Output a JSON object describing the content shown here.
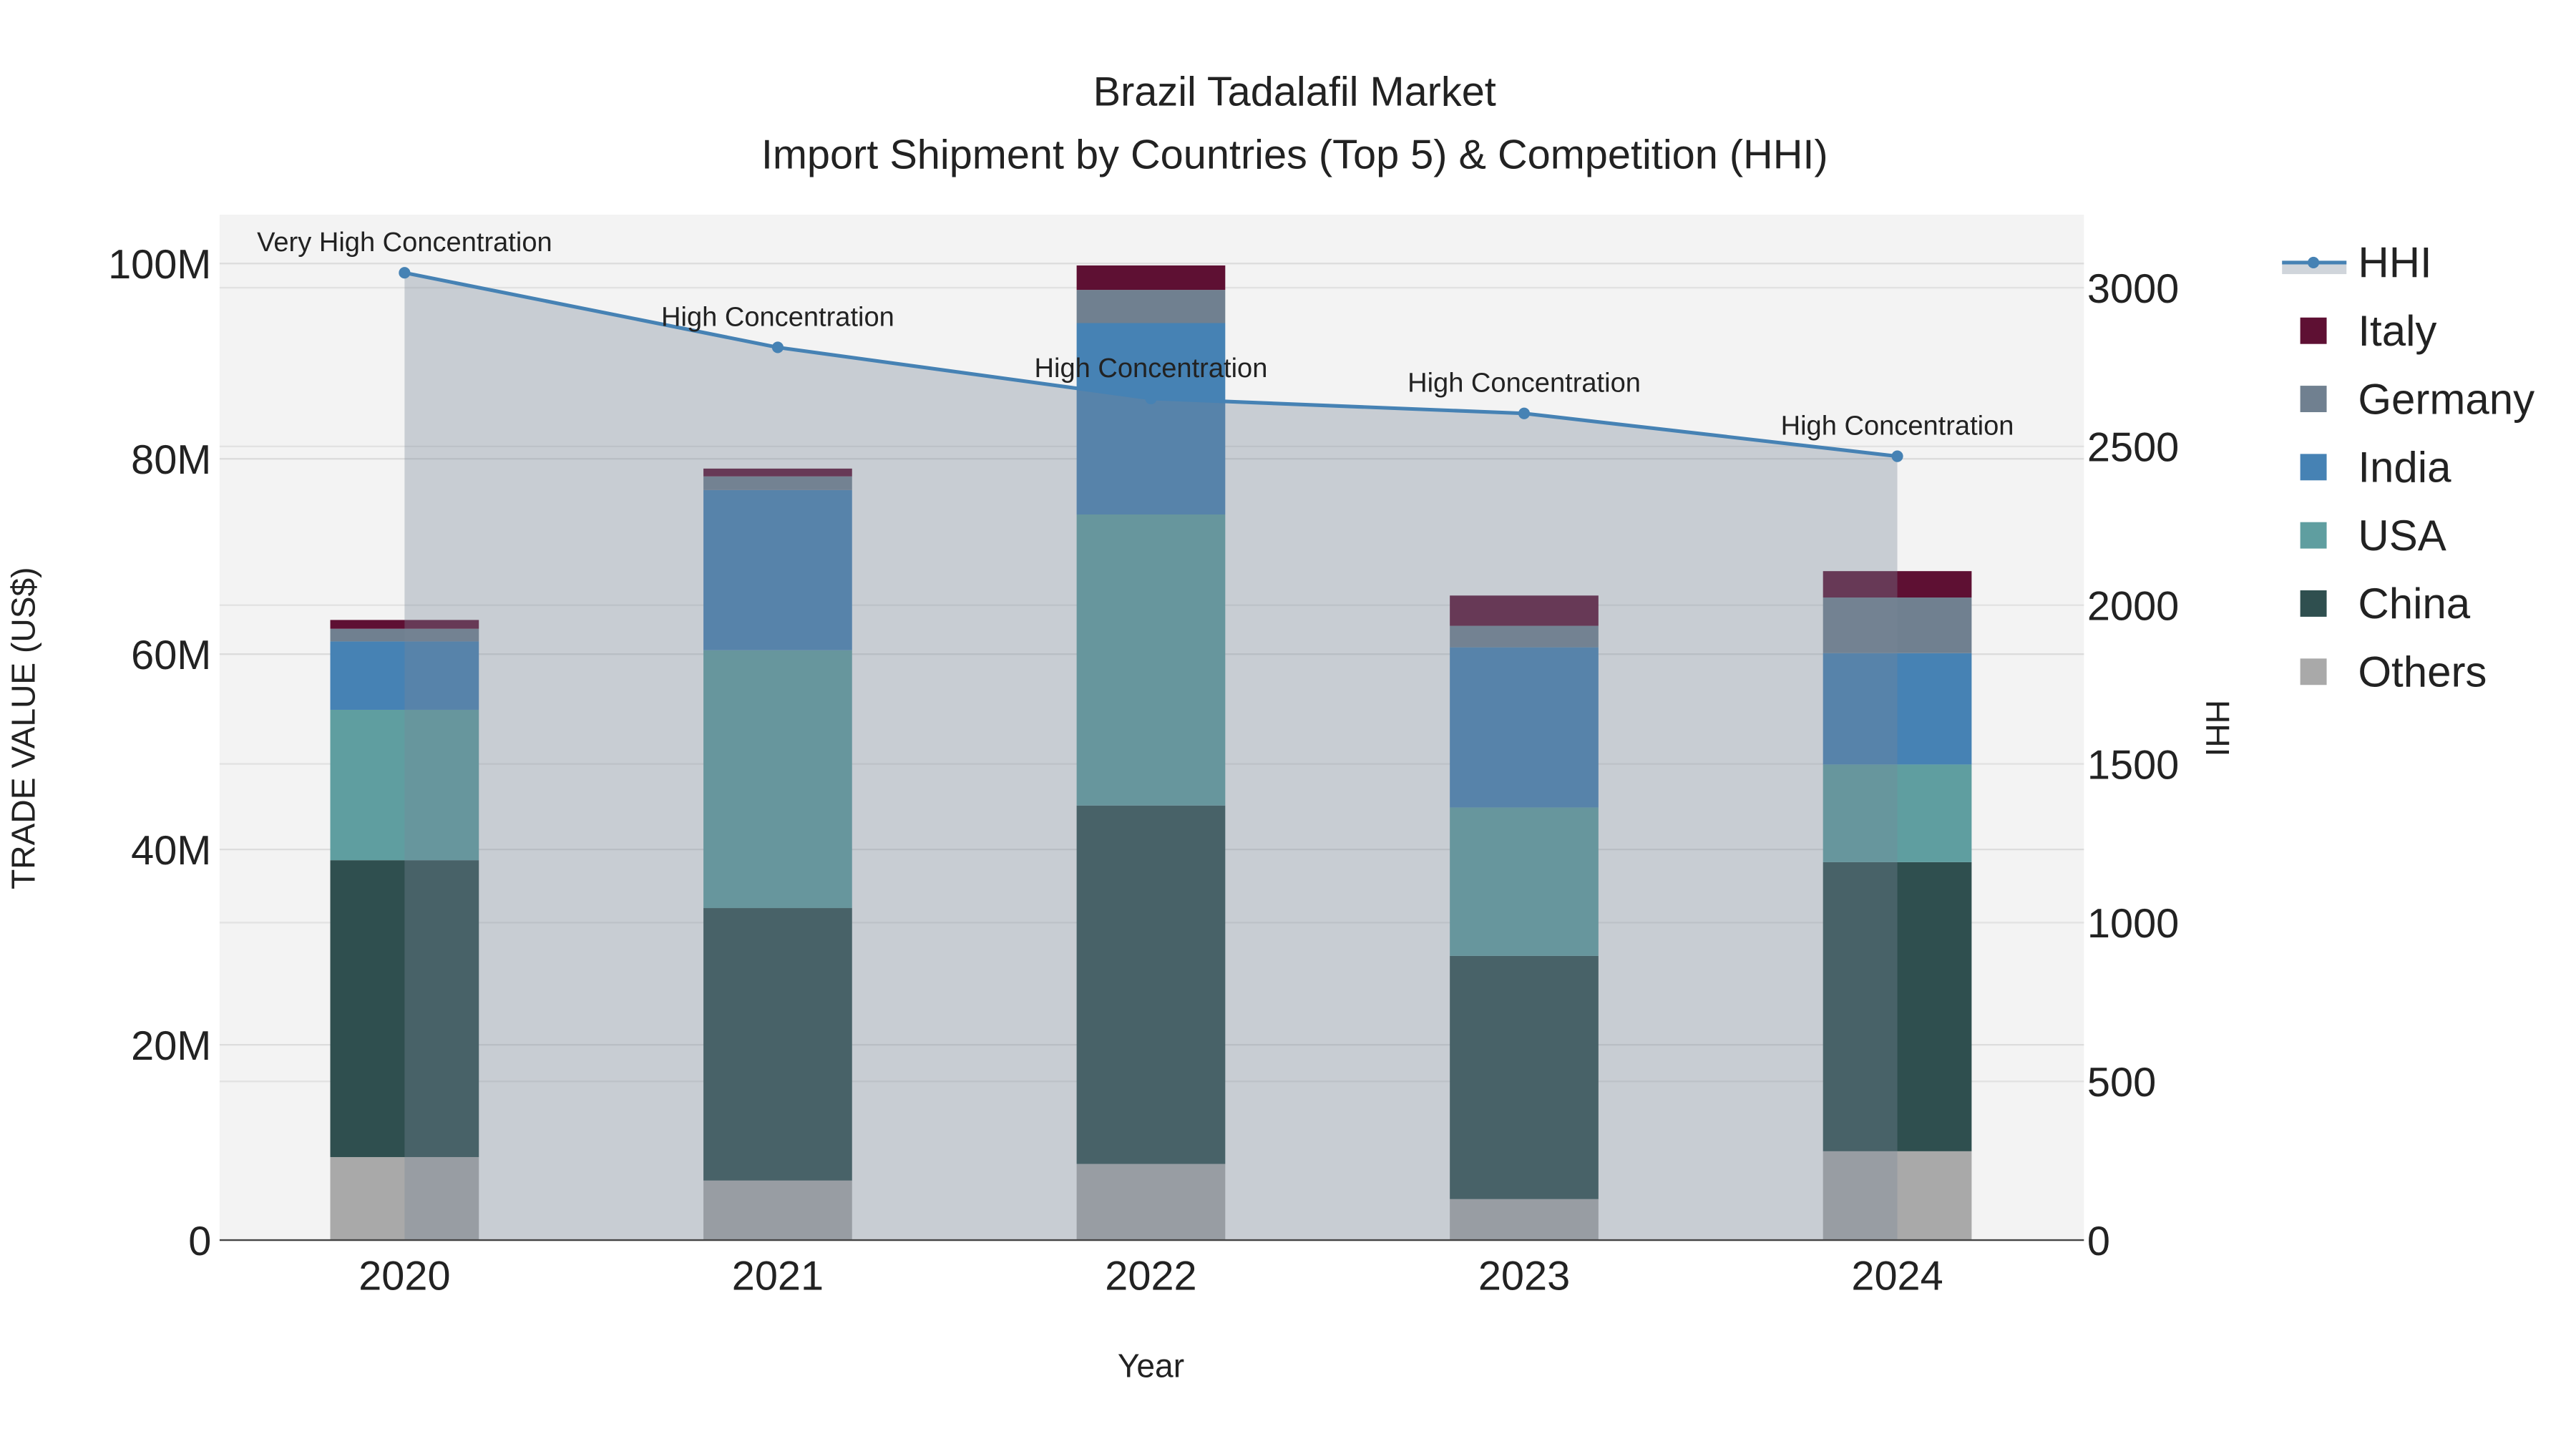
{
  "chart_data": {
    "type": "bar",
    "title": "Brazil Tadalafil Market",
    "subtitle": "Import Shipment by Countries (Top 5) & Competition (HHI)",
    "xlabel": "Year",
    "ylabel": "TRADE VALUE (US$)",
    "y2label": "HHI",
    "categories": [
      "2020",
      "2021",
      "2022",
      "2023",
      "2024"
    ],
    "ylim": [
      0,
      105000000
    ],
    "y2lim": [
      0,
      3230
    ],
    "yticks": [
      {
        "v": 0,
        "label": "0"
      },
      {
        "v": 20000000,
        "label": "20M"
      },
      {
        "v": 40000000,
        "label": "40M"
      },
      {
        "v": 60000000,
        "label": "60M"
      },
      {
        "v": 80000000,
        "label": "80M"
      },
      {
        "v": 100000000,
        "label": "100M"
      }
    ],
    "y2ticks": [
      {
        "v": 0,
        "label": "0"
      },
      {
        "v": 500,
        "label": "500"
      },
      {
        "v": 1000,
        "label": "1000"
      },
      {
        "v": 1500,
        "label": "1500"
      },
      {
        "v": 2000,
        "label": "2000"
      },
      {
        "v": 2500,
        "label": "2500"
      },
      {
        "v": 3000,
        "label": "3000"
      }
    ],
    "stack_order": [
      "Others",
      "China",
      "USA",
      "India",
      "Germany",
      "Italy"
    ],
    "series": [
      {
        "name": "Others",
        "color": "#a9a9a9",
        "values": [
          8500000,
          6100000,
          7800000,
          4200000,
          9100000
        ]
      },
      {
        "name": "China",
        "color": "#2f4f4f",
        "values": [
          30400000,
          27900000,
          36700000,
          24900000,
          29600000
        ]
      },
      {
        "name": "USA",
        "color": "#5f9ea0",
        "values": [
          15400000,
          26400000,
          29800000,
          15200000,
          10000000
        ]
      },
      {
        "name": "India",
        "color": "#4682b4",
        "values": [
          7000000,
          16400000,
          19600000,
          16400000,
          11400000
        ]
      },
      {
        "name": "Germany",
        "color": "#708090",
        "values": [
          1300000,
          1400000,
          3400000,
          2200000,
          5700000
        ]
      },
      {
        "name": "Italy",
        "color": "#5e1033",
        "values": [
          900000,
          800000,
          2500000,
          3100000,
          2700000
        ]
      }
    ],
    "hhi": {
      "name": "HHI",
      "color": "#4682b4",
      "values": [
        3047,
        2812,
        2651,
        2604,
        2469
      ],
      "annotations": [
        "Very High Concentration",
        "High Concentration",
        "High Concentration",
        "High Concentration",
        "High Concentration"
      ]
    },
    "legend": [
      "HHI",
      "Italy",
      "Germany",
      "India",
      "USA",
      "China",
      "Others"
    ],
    "legend_placement": "right",
    "grid": true
  }
}
